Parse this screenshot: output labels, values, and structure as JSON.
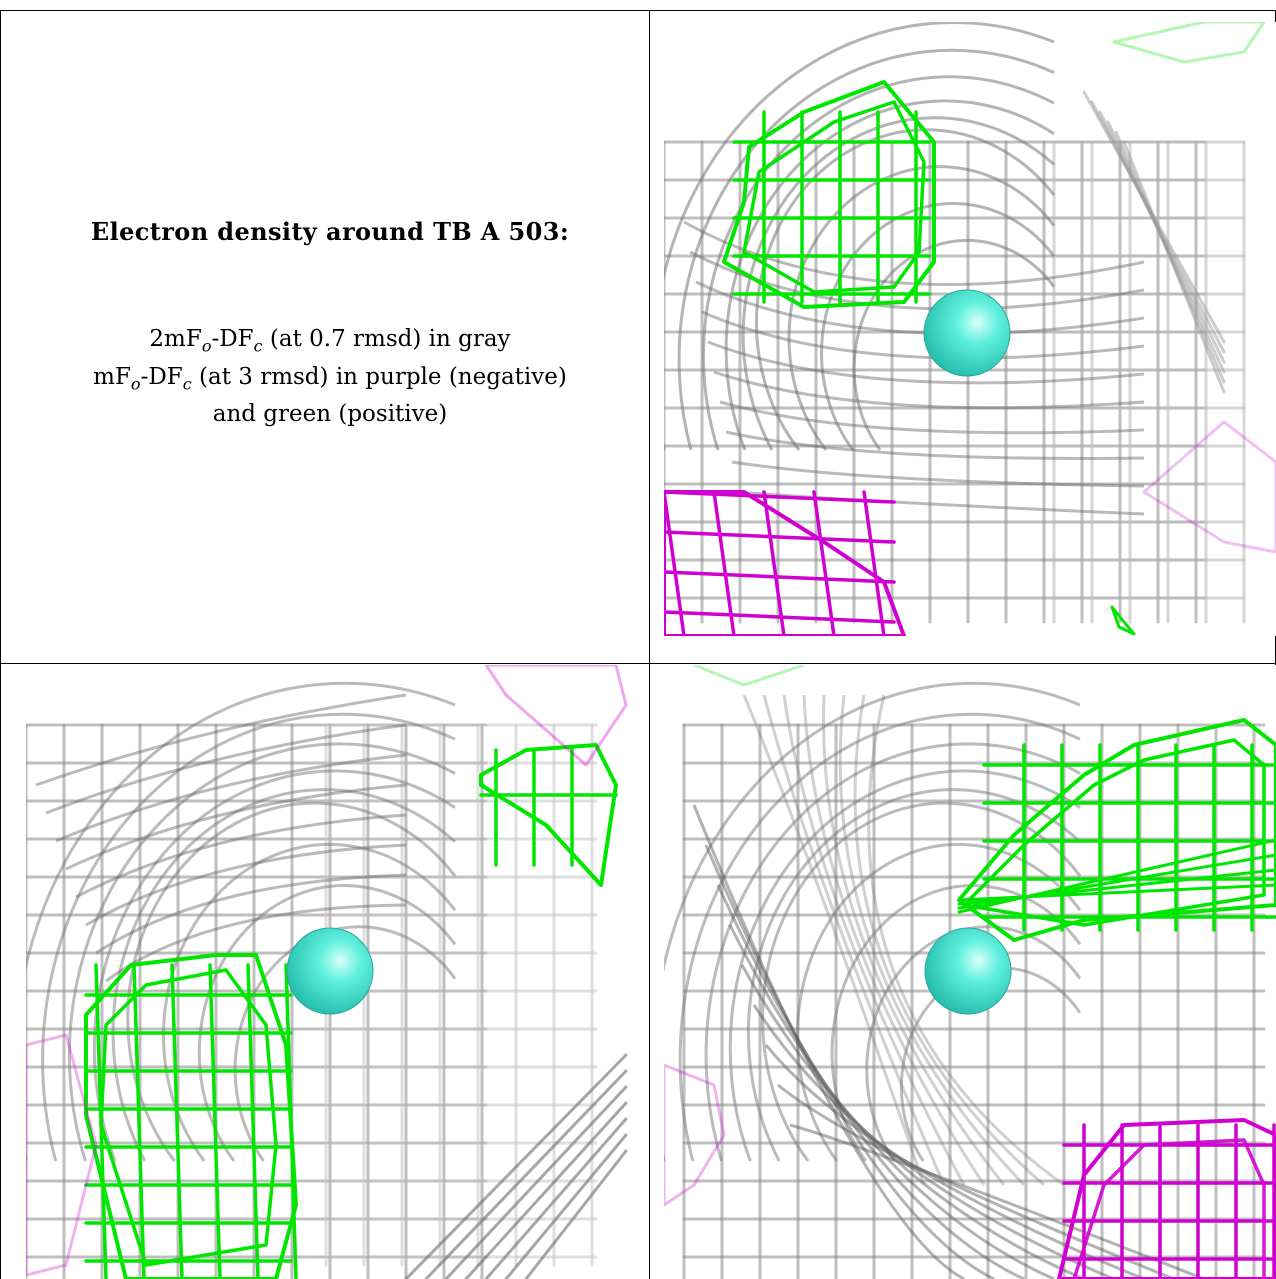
{
  "caption": {
    "title": "Electron density around TB A 503:",
    "line1": {
      "a": "2mF",
      "b": "o",
      "c": "-DF",
      "d": "c",
      "e": " (at 0.7 rmsd) in gray"
    },
    "line2": {
      "a": "mF",
      "b": "o",
      "c": "-DF",
      "d": "c",
      "e": " (at 3 rmsd) in purple (negative)"
    },
    "line3": "and green (positive)"
  },
  "colors": {
    "gray_mesh": "#9a9a9a",
    "positive_mesh": "#00e600",
    "negative_mesh": "#d000d0",
    "atom": "#40e0d0"
  },
  "panels": [
    {
      "name": "view-top-right"
    },
    {
      "name": "view-bottom-left"
    },
    {
      "name": "view-bottom-right"
    }
  ]
}
